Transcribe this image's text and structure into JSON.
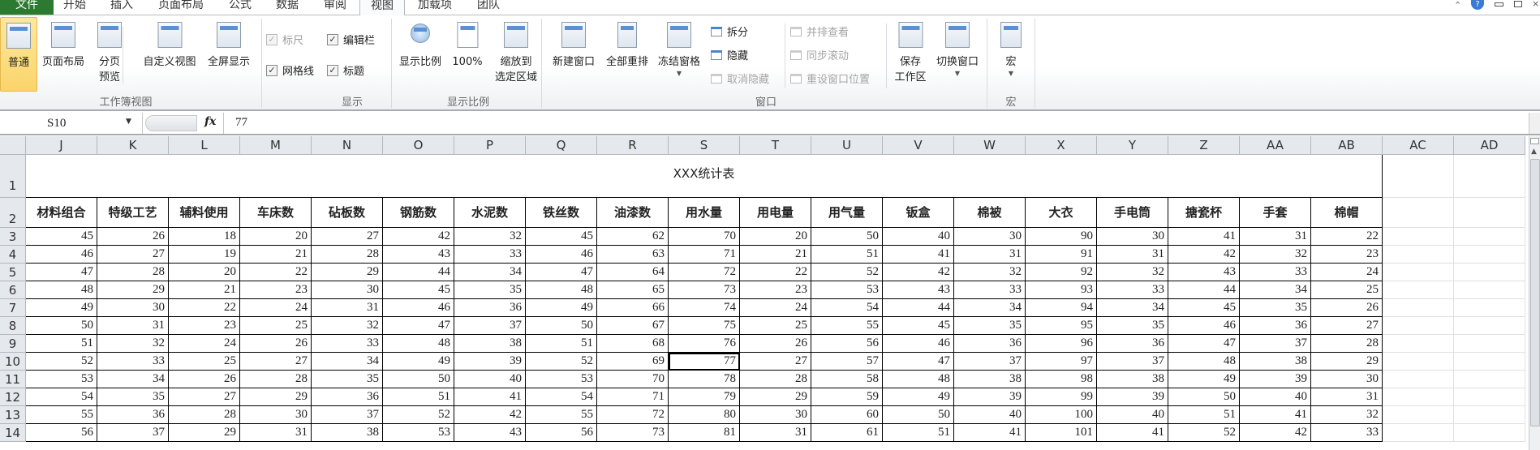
{
  "tabs": [
    {
      "label": "文件"
    },
    {
      "label": "开始"
    },
    {
      "label": "插入"
    },
    {
      "label": "页面布局"
    },
    {
      "label": "公式"
    },
    {
      "label": "数据"
    },
    {
      "label": "审阅"
    },
    {
      "label": "视图",
      "selected": true
    },
    {
      "label": "加载项"
    },
    {
      "label": "团队"
    }
  ],
  "ribbon": {
    "workbook_views": {
      "label": "工作簿视图",
      "normal": "普通",
      "page_layout": "页面布局",
      "page_break_1": "分页",
      "page_break_2": "预览",
      "custom_views": "自定义视图",
      "full_screen": "全屏显示"
    },
    "show": {
      "label": "显示",
      "ruler": "标尺",
      "formula_bar": "编辑栏",
      "gridlines": "网格线",
      "headings": "标题",
      "ruler_checked": true,
      "formula_bar_checked": true,
      "gridlines_checked": true,
      "headings_checked": true
    },
    "zoom": {
      "label": "显示比例",
      "zoom": "显示比例",
      "hundred": "100%",
      "zoom_sel_1": "缩放到",
      "zoom_sel_2": "选定区域"
    },
    "window": {
      "label": "窗口",
      "new_window": "新建窗口",
      "arrange_all": "全部重排",
      "freeze_panes": "冻结窗格",
      "split": "拆分",
      "hide": "隐藏",
      "unhide": "取消隐藏",
      "side_by_side": "并排查看",
      "sync_scroll": "同步滚动",
      "reset_position": "重设窗口位置",
      "save_ws_1": "保存",
      "save_ws_2": "工作区",
      "switch_windows": "切换窗口"
    },
    "macros": {
      "label": "宏",
      "macros": "宏"
    }
  },
  "formula_bar": {
    "name_box": "S10",
    "fx": "fx",
    "value": "77"
  },
  "sheet": {
    "columns": [
      "J",
      "K",
      "L",
      "M",
      "N",
      "O",
      "P",
      "Q",
      "R",
      "S",
      "T",
      "U",
      "V",
      "W",
      "X",
      "Y",
      "Z",
      "AA",
      "AB",
      "AC",
      "AD"
    ],
    "title": "XXX统计表",
    "headers": [
      "材料组合",
      "特级工艺",
      "辅料使用",
      "车床数",
      "砧板数",
      "钢筋数",
      "水泥数",
      "铁丝数",
      "油漆数",
      "用水量",
      "用电量",
      "用气量",
      "钣盒",
      "棉被",
      "大衣",
      "手电筒",
      "搪瓷杯",
      "手套",
      "棉帽"
    ],
    "row_numbers": [
      "1",
      "2",
      "3",
      "4",
      "5",
      "6",
      "7",
      "8",
      "9",
      "10",
      "11",
      "12",
      "13",
      "14"
    ],
    "rows": [
      [
        "45",
        "26",
        "18",
        "20",
        "27",
        "42",
        "32",
        "45",
        "62",
        "70",
        "20",
        "50",
        "40",
        "30",
        "90",
        "30",
        "41",
        "31",
        "22"
      ],
      [
        "46",
        "27",
        "19",
        "21",
        "28",
        "43",
        "33",
        "46",
        "63",
        "71",
        "21",
        "51",
        "41",
        "31",
        "91",
        "31",
        "42",
        "32",
        "23"
      ],
      [
        "47",
        "28",
        "20",
        "22",
        "29",
        "44",
        "34",
        "47",
        "64",
        "72",
        "22",
        "52",
        "42",
        "32",
        "92",
        "32",
        "43",
        "33",
        "24"
      ],
      [
        "48",
        "29",
        "21",
        "23",
        "30",
        "45",
        "35",
        "48",
        "65",
        "73",
        "23",
        "53",
        "43",
        "33",
        "93",
        "33",
        "44",
        "34",
        "25"
      ],
      [
        "49",
        "30",
        "22",
        "24",
        "31",
        "46",
        "36",
        "49",
        "66",
        "74",
        "24",
        "54",
        "44",
        "34",
        "94",
        "34",
        "45",
        "35",
        "26"
      ],
      [
        "50",
        "31",
        "23",
        "25",
        "32",
        "47",
        "37",
        "50",
        "67",
        "75",
        "25",
        "55",
        "45",
        "35",
        "95",
        "35",
        "46",
        "36",
        "27"
      ],
      [
        "51",
        "32",
        "24",
        "26",
        "33",
        "48",
        "38",
        "51",
        "68",
        "76",
        "26",
        "56",
        "46",
        "36",
        "96",
        "36",
        "47",
        "37",
        "28"
      ],
      [
        "52",
        "33",
        "25",
        "27",
        "34",
        "49",
        "39",
        "52",
        "69",
        "77",
        "27",
        "57",
        "47",
        "37",
        "97",
        "37",
        "48",
        "38",
        "29"
      ],
      [
        "53",
        "34",
        "26",
        "28",
        "35",
        "50",
        "40",
        "53",
        "70",
        "78",
        "28",
        "58",
        "48",
        "38",
        "98",
        "38",
        "49",
        "39",
        "30"
      ],
      [
        "54",
        "35",
        "27",
        "29",
        "36",
        "51",
        "41",
        "54",
        "71",
        "79",
        "29",
        "59",
        "49",
        "39",
        "99",
        "39",
        "50",
        "40",
        "31"
      ],
      [
        "55",
        "36",
        "28",
        "30",
        "37",
        "52",
        "42",
        "55",
        "72",
        "80",
        "30",
        "60",
        "50",
        "40",
        "100",
        "40",
        "51",
        "41",
        "32"
      ],
      [
        "56",
        "37",
        "29",
        "31",
        "38",
        "53",
        "43",
        "56",
        "73",
        "81",
        "31",
        "61",
        "51",
        "41",
        "101",
        "41",
        "52",
        "42",
        "33"
      ]
    ]
  },
  "colors": {
    "file_tab": "#2c7a2f",
    "active_view": "#fbd46a",
    "header_bg": "#e5e8ec"
  }
}
